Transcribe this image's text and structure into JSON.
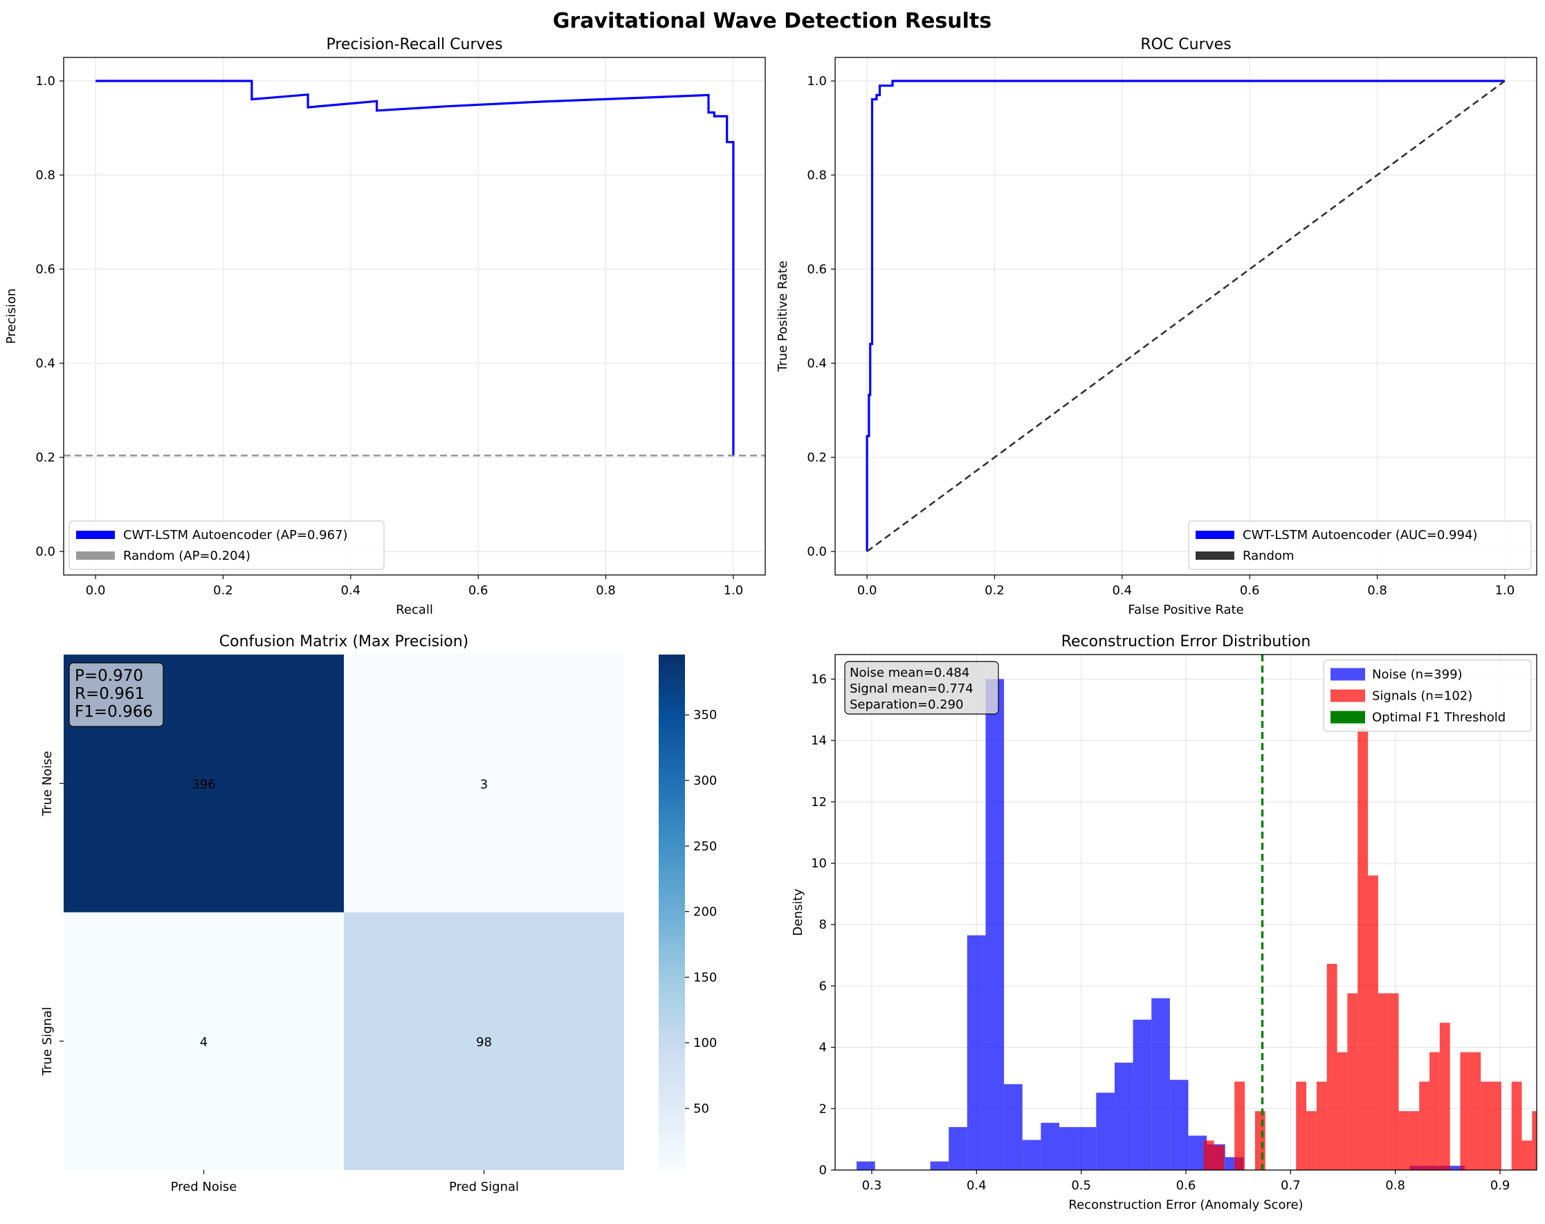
{
  "figure_title": "Gravitational Wave Detection Results",
  "chart_data": [
    {
      "id": "pr",
      "type": "line",
      "title": "Precision-Recall Curves",
      "xlabel": "Recall",
      "ylabel": "Precision",
      "xlim": [
        -0.05,
        1.05
      ],
      "ylim": [
        -0.05,
        1.05
      ],
      "xticks": [
        0.0,
        0.2,
        0.4,
        0.6,
        0.8,
        1.0
      ],
      "yticks": [
        0.0,
        0.2,
        0.4,
        0.6,
        0.8,
        1.0
      ],
      "grid": true,
      "legend_position": "lower-left",
      "series": [
        {
          "name": "CWT-LSTM Autoencoder (AP=0.967)",
          "color": "#0000ff",
          "style": "solid",
          "points": [
            [
              0.0,
              1.0
            ],
            [
              0.245,
              1.0
            ],
            [
              0.245,
              0.961
            ],
            [
              0.333,
              0.971
            ],
            [
              0.333,
              0.944
            ],
            [
              0.441,
              0.957
            ],
            [
              0.441,
              0.937
            ],
            [
              0.55,
              0.946
            ],
            [
              0.7,
              0.956
            ],
            [
              0.85,
              0.964
            ],
            [
              0.96,
              0.97
            ],
            [
              0.961,
              0.97
            ],
            [
              0.961,
              0.933
            ],
            [
              0.97,
              0.933
            ],
            [
              0.97,
              0.925
            ],
            [
              0.99,
              0.925
            ],
            [
              0.99,
              0.87
            ],
            [
              1.0,
              0.87
            ],
            [
              1.0,
              0.204
            ]
          ]
        },
        {
          "name": "Random (AP=0.204)",
          "color": "#808080",
          "style": "dashed",
          "points": [
            [
              -0.05,
              0.204
            ],
            [
              1.05,
              0.204
            ]
          ]
        }
      ]
    },
    {
      "id": "roc",
      "type": "line",
      "title": "ROC Curves",
      "xlabel": "False Positive Rate",
      "ylabel": "True Positive Rate",
      "xlim": [
        -0.05,
        1.05
      ],
      "ylim": [
        -0.05,
        1.05
      ],
      "xticks": [
        0.0,
        0.2,
        0.4,
        0.6,
        0.8,
        1.0
      ],
      "yticks": [
        0.0,
        0.2,
        0.4,
        0.6,
        0.8,
        1.0
      ],
      "grid": true,
      "legend_position": "lower-right",
      "series": [
        {
          "name": "CWT-LSTM Autoencoder (AUC=0.994)",
          "color": "#0000ff",
          "style": "solid",
          "points": [
            [
              0.0,
              0.0
            ],
            [
              0.0,
              0.245
            ],
            [
              0.003,
              0.245
            ],
            [
              0.003,
              0.333
            ],
            [
              0.005,
              0.333
            ],
            [
              0.005,
              0.441
            ],
            [
              0.008,
              0.441
            ],
            [
              0.008,
              0.961
            ],
            [
              0.015,
              0.961
            ],
            [
              0.015,
              0.97
            ],
            [
              0.02,
              0.97
            ],
            [
              0.02,
              0.99
            ],
            [
              0.04,
              0.99
            ],
            [
              0.04,
              1.0
            ],
            [
              1.0,
              1.0
            ]
          ]
        },
        {
          "name": "Random",
          "color": "#333333",
          "style": "dashed",
          "points": [
            [
              0.0,
              0.0
            ],
            [
              1.0,
              1.0
            ]
          ]
        }
      ]
    },
    {
      "id": "cm",
      "type": "heatmap",
      "title": "Confusion Matrix (Max Precision)",
      "row_labels": [
        "True Noise",
        "True Signal"
      ],
      "col_labels": [
        "Pred Noise",
        "Pred Signal"
      ],
      "values": [
        [
          396,
          3
        ],
        [
          4,
          98
        ]
      ],
      "colormap": "Blues",
      "vmin": 3,
      "vmax": 396,
      "colorbar_ticks": [
        50,
        100,
        150,
        200,
        250,
        300,
        350
      ],
      "annotation": [
        "P=0.970",
        "R=0.961",
        "F1=0.966"
      ]
    },
    {
      "id": "hist",
      "type": "bar",
      "title": "Reconstruction Error Distribution",
      "xlabel": "Reconstruction Error (Anomaly Score)",
      "ylabel": "Density",
      "xlim": [
        0.265,
        0.935
      ],
      "ylim": [
        0,
        16.8
      ],
      "xticks": [
        0.3,
        0.4,
        0.5,
        0.6,
        0.7,
        0.8,
        0.9
      ],
      "yticks": [
        0,
        2,
        4,
        6,
        8,
        10,
        12,
        14,
        16
      ],
      "grid": true,
      "legend_position": "top-right",
      "series": [
        {
          "name": "Noise (n=399)",
          "color": "#0000ff",
          "bin_start": 0.2855,
          "bin_width": 0.0176,
          "values": [
            0.28,
            0,
            0,
            0,
            0.28,
            1.4,
            7.65,
            16.0,
            2.8,
            0.98,
            1.54,
            1.4,
            1.4,
            2.52,
            3.5,
            4.9,
            5.6,
            2.94,
            1.12,
            0.84,
            0.42,
            0,
            0,
            0,
            0,
            0,
            0,
            0,
            0,
            0,
            0.14,
            0.14,
            0.14
          ]
        },
        {
          "name": "Signals (n=102)",
          "color": "#ff0000",
          "bin_start": 0.617,
          "bin_width": 0.0098,
          "values": [
            0.96,
            0.8,
            0,
            2.88,
            0,
            1.92,
            0,
            0,
            0,
            2.88,
            1.92,
            2.88,
            6.72,
            3.84,
            5.76,
            14.4,
            9.6,
            5.76,
            5.76,
            1.92,
            1.92,
            2.88,
            3.84,
            4.8,
            0,
            3.84,
            3.84,
            2.88,
            2.88,
            0,
            2.88,
            0.96,
            1.92
          ]
        }
      ],
      "threshold": {
        "name": "Optimal F1 Threshold",
        "value": 0.673,
        "color": "#008000"
      },
      "stats": [
        "Noise mean=0.484",
        "Signal mean=0.774",
        "Separation=0.290"
      ]
    }
  ]
}
